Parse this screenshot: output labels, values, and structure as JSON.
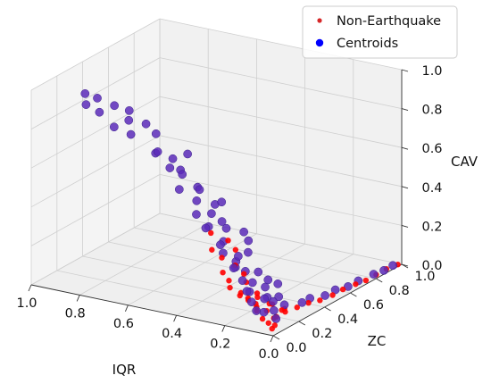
{
  "chart_data": {
    "type": "scatter",
    "projection": "3d",
    "grid": true,
    "axes": {
      "x": {
        "label": "IQR",
        "range": [
          0.0,
          1.0
        ],
        "ticks": [
          "0.0",
          "0.2",
          "0.4",
          "0.6",
          "0.8",
          "1.0"
        ]
      },
      "y": {
        "label": "ZC",
        "range": [
          0.0,
          1.0
        ],
        "ticks": [
          "0.0",
          "0.2",
          "0.4",
          "0.6",
          "0.8",
          "1.0"
        ]
      },
      "z": {
        "label": "CAV",
        "range": [
          0.0,
          1.0
        ],
        "ticks": [
          "0.0",
          "0.2",
          "0.4",
          "0.6",
          "0.8",
          "1.0"
        ]
      }
    },
    "legend": {
      "placement": "top-right",
      "entries": [
        {
          "name": "Non-Earthquake",
          "color": "#d62728",
          "marker": "small-dot"
        },
        {
          "name": "Centroids",
          "color": "#0000ff",
          "marker": "dot"
        }
      ]
    },
    "series": [
      {
        "name": "Non-Earthquake",
        "color": "#ff0000",
        "points": [
          [
            0.02,
            0.05,
            0.03
          ],
          [
            0.04,
            0.08,
            0.05
          ],
          [
            0.05,
            0.12,
            0.04
          ],
          [
            0.03,
            0.15,
            0.06
          ],
          [
            0.06,
            0.18,
            0.05
          ],
          [
            0.08,
            0.1,
            0.07
          ],
          [
            0.07,
            0.22,
            0.04
          ],
          [
            0.05,
            0.28,
            0.03
          ],
          [
            0.04,
            0.35,
            0.03
          ],
          [
            0.03,
            0.42,
            0.02
          ],
          [
            0.02,
            0.5,
            0.02
          ],
          [
            0.02,
            0.58,
            0.02
          ],
          [
            0.01,
            0.66,
            0.02
          ],
          [
            0.01,
            0.74,
            0.01
          ],
          [
            0.01,
            0.82,
            0.01
          ],
          [
            0.01,
            0.9,
            0.01
          ],
          [
            0.0,
            0.97,
            0.01
          ],
          [
            0.1,
            0.06,
            0.08
          ],
          [
            0.12,
            0.09,
            0.1
          ],
          [
            0.09,
            0.14,
            0.09
          ],
          [
            0.11,
            0.2,
            0.06
          ],
          [
            0.14,
            0.07,
            0.12
          ],
          [
            0.13,
            0.12,
            0.14
          ],
          [
            0.15,
            0.16,
            0.1
          ],
          [
            0.06,
            0.03,
            0.06
          ],
          [
            0.03,
            0.02,
            0.05
          ],
          [
            0.01,
            0.01,
            0.03
          ],
          [
            0.09,
            0.04,
            0.11
          ],
          [
            0.12,
            0.03,
            0.15
          ],
          [
            0.16,
            0.05,
            0.16
          ],
          [
            0.18,
            0.08,
            0.13
          ],
          [
            0.2,
            0.04,
            0.18
          ],
          [
            0.22,
            0.07,
            0.2
          ],
          [
            0.17,
            0.11,
            0.19
          ],
          [
            0.19,
            0.13,
            0.22
          ],
          [
            0.24,
            0.06,
            0.24
          ],
          [
            0.21,
            0.1,
            0.27
          ],
          [
            0.26,
            0.09,
            0.3
          ],
          [
            0.23,
            0.14,
            0.33
          ],
          [
            0.28,
            0.05,
            0.35
          ],
          [
            0.25,
            0.12,
            0.38
          ],
          [
            0.3,
            0.08,
            0.42
          ]
        ]
      },
      {
        "name": "Centroids",
        "color": "#5a2ab8",
        "points": [
          [
            0.02,
            0.06,
            0.06
          ],
          [
            0.05,
            0.1,
            0.08
          ],
          [
            0.08,
            0.15,
            0.1
          ],
          [
            0.06,
            0.2,
            0.07
          ],
          [
            0.1,
            0.12,
            0.12
          ],
          [
            0.12,
            0.18,
            0.1
          ],
          [
            0.14,
            0.08,
            0.16
          ],
          [
            0.11,
            0.25,
            0.08
          ],
          [
            0.16,
            0.14,
            0.18
          ],
          [
            0.18,
            0.1,
            0.2
          ],
          [
            0.15,
            0.22,
            0.13
          ],
          [
            0.2,
            0.16,
            0.22
          ],
          [
            0.22,
            0.12,
            0.25
          ],
          [
            0.17,
            0.28,
            0.14
          ],
          [
            0.24,
            0.18,
            0.28
          ],
          [
            0.19,
            0.05,
            0.28
          ],
          [
            0.21,
            0.2,
            0.3
          ],
          [
            0.26,
            0.1,
            0.32
          ],
          [
            0.23,
            0.24,
            0.34
          ],
          [
            0.28,
            0.14,
            0.36
          ],
          [
            0.25,
            0.06,
            0.38
          ],
          [
            0.3,
            0.2,
            0.4
          ],
          [
            0.27,
            0.28,
            0.36
          ],
          [
            0.32,
            0.1,
            0.44
          ],
          [
            0.3,
            0.04,
            0.46
          ],
          [
            0.34,
            0.16,
            0.48
          ],
          [
            0.36,
            0.08,
            0.5
          ],
          [
            0.33,
            0.22,
            0.52
          ],
          [
            0.38,
            0.12,
            0.55
          ],
          [
            0.4,
            0.18,
            0.58
          ],
          [
            0.42,
            0.06,
            0.62
          ],
          [
            0.45,
            0.14,
            0.66
          ],
          [
            0.48,
            0.1,
            0.7
          ],
          [
            0.46,
            0.2,
            0.74
          ],
          [
            0.5,
            0.16,
            0.72
          ],
          [
            0.52,
            0.08,
            0.78
          ],
          [
            0.55,
            0.12,
            0.75
          ],
          [
            0.58,
            0.18,
            0.82
          ],
          [
            0.62,
            0.06,
            0.85
          ],
          [
            0.6,
            0.14,
            0.88
          ],
          [
            0.65,
            0.1,
            0.9
          ],
          [
            0.68,
            0.16,
            0.92
          ],
          [
            0.7,
            0.08,
            0.86
          ],
          [
            0.72,
            0.12,
            0.95
          ],
          [
            0.75,
            0.06,
            0.93
          ],
          [
            0.78,
            0.1,
            0.98
          ],
          [
            0.8,
            0.05,
            0.96
          ],
          [
            0.82,
            0.08,
            1.0
          ],
          [
            0.04,
            0.3,
            0.05
          ],
          [
            0.05,
            0.38,
            0.04
          ],
          [
            0.03,
            0.46,
            0.03
          ],
          [
            0.03,
            0.54,
            0.03
          ],
          [
            0.02,
            0.62,
            0.02
          ],
          [
            0.02,
            0.7,
            0.02
          ],
          [
            0.01,
            0.8,
            0.02
          ],
          [
            0.01,
            0.88,
            0.01
          ],
          [
            0.01,
            0.95,
            0.01
          ],
          [
            0.14,
            0.3,
            0.12
          ],
          [
            0.2,
            0.26,
            0.18
          ],
          [
            0.26,
            0.2,
            0.24
          ],
          [
            0.35,
            0.26,
            0.4
          ],
          [
            0.44,
            0.24,
            0.56
          ],
          [
            0.5,
            0.22,
            0.64
          ],
          [
            0.4,
            0.3,
            0.46
          ],
          [
            0.06,
            0.04,
            0.09
          ],
          [
            0.1,
            0.02,
            0.14
          ],
          [
            0.13,
            0.04,
            0.18
          ],
          [
            0.08,
            0.02,
            0.1
          ]
        ]
      }
    ]
  }
}
